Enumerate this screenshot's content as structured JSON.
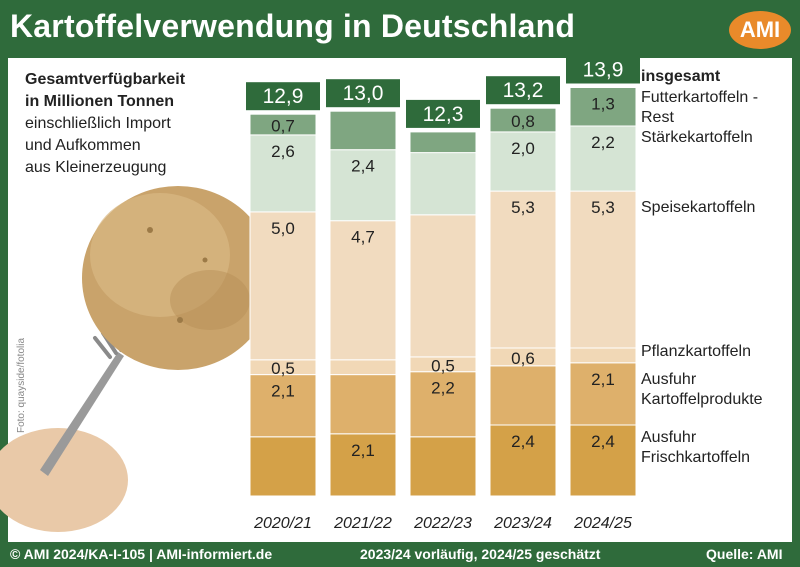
{
  "header": {
    "title": "Kartoffelverwendung in Deutschland",
    "logo_text": "AMI"
  },
  "subtitle": {
    "line1": "Gesamtverfügbarkeit",
    "line2": "in Millionen Tonnen",
    "line3": "einschließlich Import",
    "line4": "und Aufkommen",
    "line5": "aus Kleinerzeugung"
  },
  "photo_credit": "Foto: quayside/fotolia",
  "footer": {
    "left": "© AMI 2024/KA-I-105 | AMI-informiert.de",
    "middle": "2023/24 vorläufig, 2024/25 geschätzt",
    "right": "Quelle: AMI"
  },
  "colors": {
    "background": "#2f6b3b",
    "total_box": "#2f6b3b",
    "segments": [
      "#d4a148",
      "#deb06b",
      "#f1d8b6",
      "#f1dbbf",
      "#d5e4d4",
      "#7fa681"
    ]
  },
  "chart_data": {
    "type": "bar",
    "stacked": true,
    "categories": [
      "2020/21",
      "2021/22",
      "2022/23",
      "2023/24",
      "2024/25"
    ],
    "series_labels_header": "insgesamt",
    "series": [
      {
        "name": "Ausfuhr Frischkartoffeln",
        "label_lines": [
          "Ausfuhr",
          "Frischkartoffeln"
        ],
        "values": [
          2.0,
          2.1,
          2.0,
          2.4,
          2.4
        ],
        "labels": [
          "",
          "2,1",
          "",
          "2,4",
          "2,4"
        ]
      },
      {
        "name": "Ausfuhr Kartoffelprodukte",
        "label_lines": [
          "Ausfuhr",
          "Kartoffelprodukte"
        ],
        "values": [
          2.1,
          2.0,
          2.2,
          2.0,
          2.1
        ],
        "labels": [
          "2,1",
          "",
          "2,2",
          "",
          "2,1"
        ]
      },
      {
        "name": "Pflanzkartoffeln",
        "label_lines": [
          "Pflanzkartoffeln"
        ],
        "values": [
          0.5,
          0.5,
          0.5,
          0.6,
          0.5
        ],
        "labels": [
          "0,5",
          "",
          "0,5",
          "0,6",
          ""
        ]
      },
      {
        "name": "Speisekartoffeln",
        "label_lines": [
          "Speisekartoffeln"
        ],
        "values": [
          5.0,
          4.7,
          4.8,
          5.3,
          5.3
        ],
        "labels": [
          "5,0",
          "4,7",
          "",
          "5,3",
          "5,3"
        ]
      },
      {
        "name": "Stärkekartoffeln",
        "label_lines": [
          "Stärkekartoffeln"
        ],
        "values": [
          2.6,
          2.4,
          2.1,
          2.0,
          2.2
        ],
        "labels": [
          "2,6",
          "2,4",
          "",
          "2,0",
          "2,2"
        ]
      },
      {
        "name": "Futterkartoffeln - Rest",
        "label_lines": [
          "Futterkartoffeln -",
          "Rest"
        ],
        "values": [
          0.7,
          1.3,
          0.7,
          0.8,
          1.3
        ],
        "labels": [
          "0,7",
          "",
          "",
          "0,8",
          "1,3"
        ]
      }
    ],
    "totals": [
      "12,9",
      "13,0",
      "12,3",
      "13,2",
      "13,9"
    ],
    "total_values": [
      12.9,
      13.0,
      12.3,
      13.2,
      13.9
    ],
    "ylim": [
      0,
      14
    ],
    "grid": false,
    "legend": "right"
  }
}
